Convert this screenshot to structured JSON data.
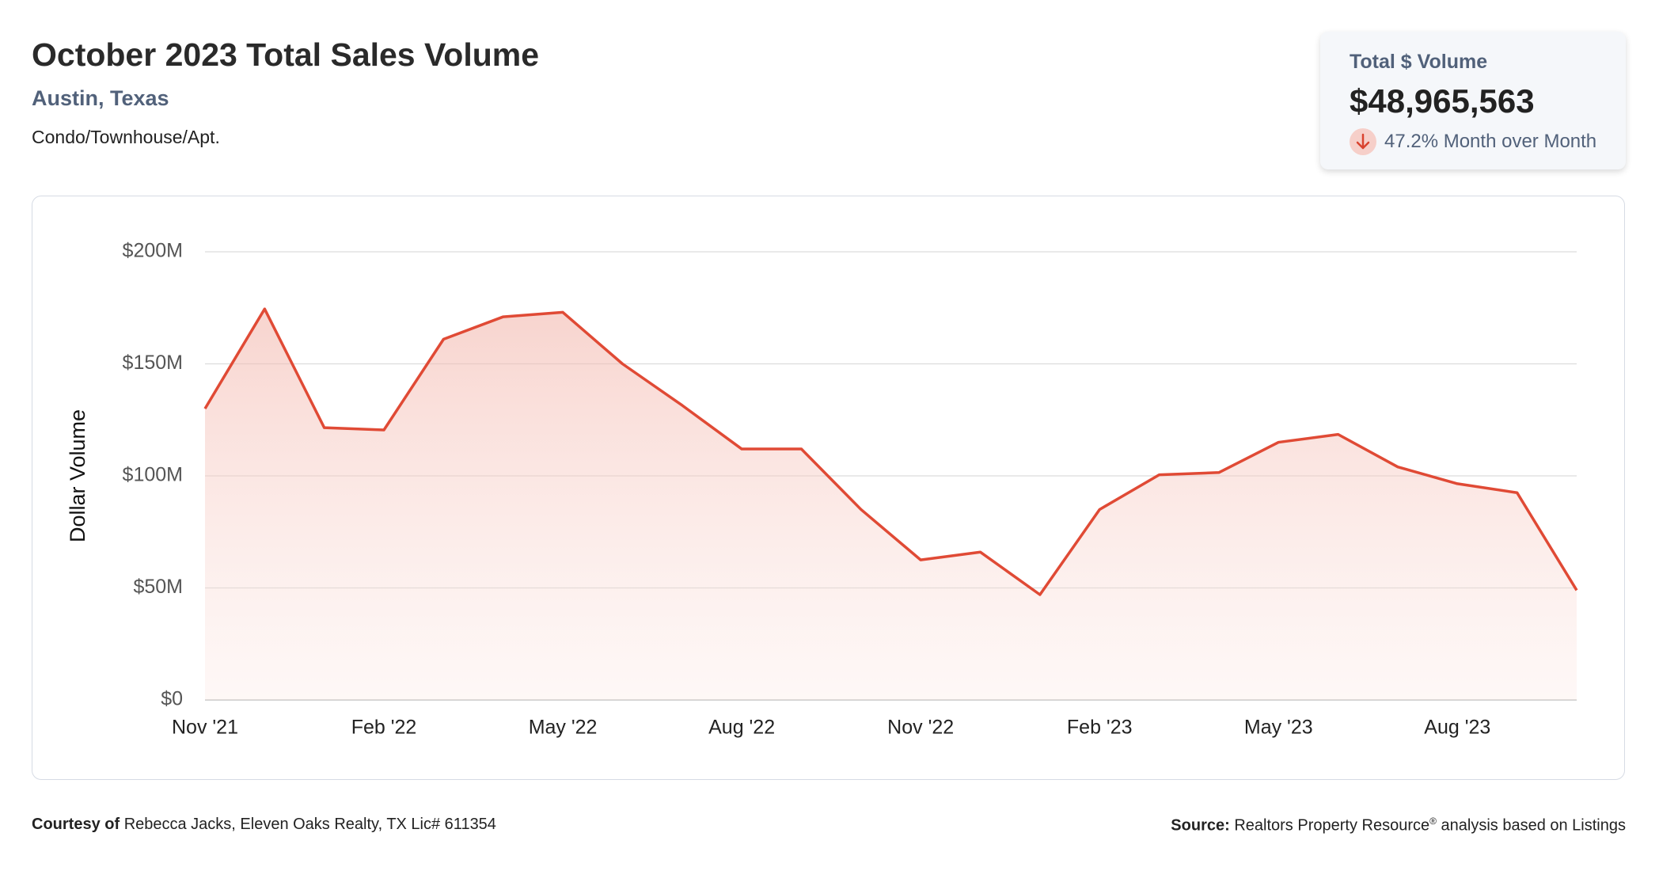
{
  "header": {
    "title": "October 2023 Total Sales Volume",
    "subtitle": "Austin, Texas",
    "property_type": "Condo/Townhouse/Apt."
  },
  "kpi": {
    "label": "Total $ Volume",
    "value": "$48,965,563",
    "change": "47.2% Month over Month"
  },
  "chart_data": {
    "type": "area",
    "y_label": "Dollar Volume",
    "categories": [
      "Nov '21",
      null,
      null,
      "Feb '22",
      null,
      null,
      "May '22",
      null,
      null,
      "Aug '22",
      null,
      null,
      "Nov '22",
      null,
      null,
      "Feb '23",
      null,
      null,
      "May '23",
      null,
      null,
      "Aug '23",
      null,
      null
    ],
    "series": [
      {
        "name": "Total $ Volume",
        "color": "#e04a35",
        "values": [
          130000000,
          174500000,
          121500000,
          120500000,
          161000000,
          171000000,
          173000000,
          150000000,
          131500000,
          112000000,
          112000000,
          85000000,
          62500000,
          66000000,
          47000000,
          85000000,
          100500000,
          101500000,
          115000000,
          118500000,
          104000000,
          96500000,
          92500000,
          48965563
        ]
      }
    ],
    "ylim": [
      0,
      200000000
    ],
    "yticks": [
      {
        "value": 0,
        "label": "$0"
      },
      {
        "value": 50000000,
        "label": "$50M"
      },
      {
        "value": 100000000,
        "label": "$100M"
      },
      {
        "value": 150000000,
        "label": "$150M"
      },
      {
        "value": 200000000,
        "label": "$200M"
      }
    ],
    "grid": true
  },
  "footer": {
    "courtesy_label": "Courtesy of",
    "courtesy": "Rebecca Jacks, Eleven Oaks Realty, TX Lic# 611354",
    "source_label": "Source:",
    "source": "Realtors Property Resource",
    "source_mark": "®",
    "source_rest": "analysis based on Listings"
  }
}
